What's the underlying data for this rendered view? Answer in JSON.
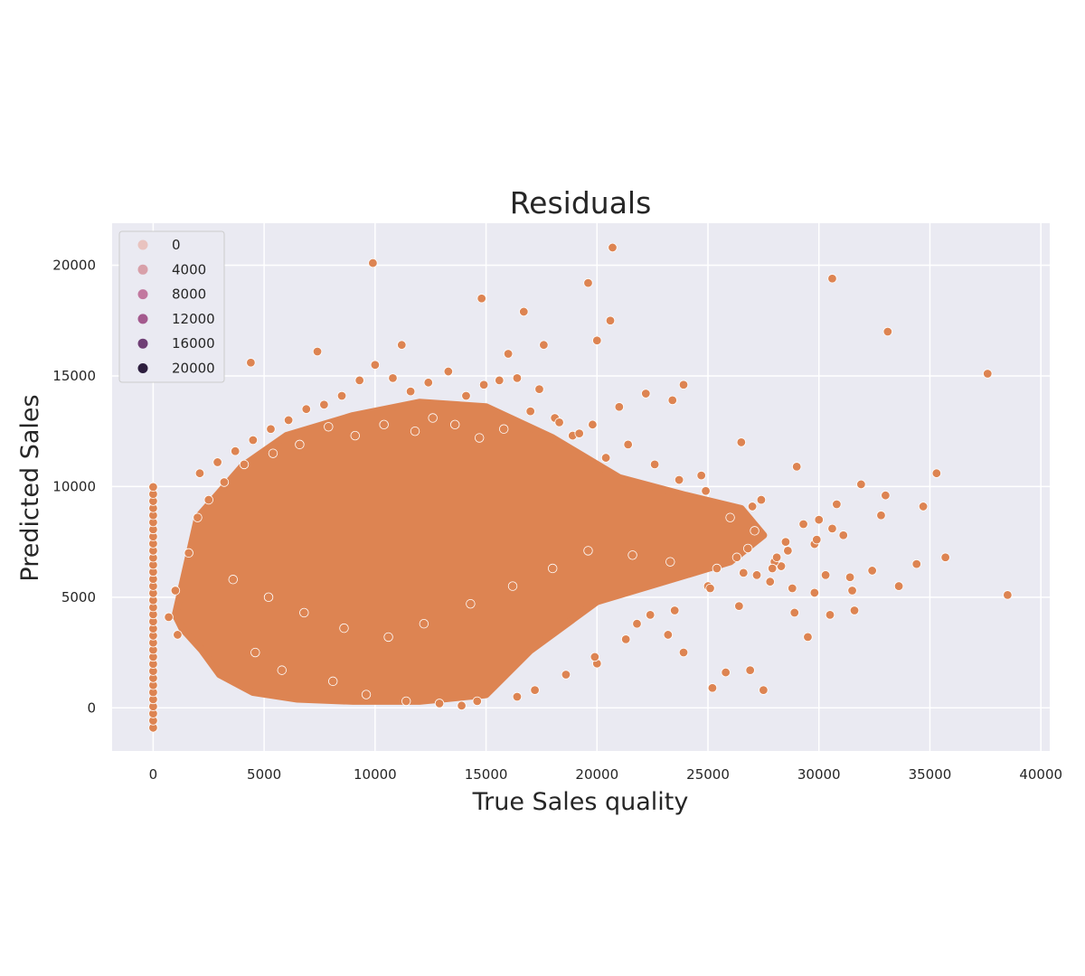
{
  "chart_data": {
    "type": "scatter",
    "title": "Residuals",
    "xlabel": "True Sales quality",
    "ylabel": "Predicted Sales",
    "xlim": [
      -1850,
      40400
    ],
    "ylim": [
      -1950,
      21900
    ],
    "xticks": [
      0,
      5000,
      10000,
      15000,
      20000,
      25000,
      30000,
      35000,
      40000
    ],
    "yticks": [
      0,
      5000,
      10000,
      15000,
      20000
    ],
    "grid": true,
    "background": "#eaeaf2",
    "grid_color": "#ffffff",
    "point_color": "#dd8452",
    "point_edge_color": "#ffffff",
    "legend": {
      "placement": "top-left",
      "entries": [
        {
          "label": "0",
          "color": "#e9c3bf"
        },
        {
          "label": "4000",
          "color": "#d8a0a9"
        },
        {
          "label": "8000",
          "color": "#c2789f"
        },
        {
          "label": "12000",
          "color": "#a45a8e"
        },
        {
          "label": "16000",
          "color": "#6f3f75"
        },
        {
          "label": "20000",
          "color": "#2d1e3e"
        }
      ]
    },
    "series": [
      {
        "x": [
          9900,
          20700,
          30600,
          14800,
          19600,
          33100,
          37600,
          20600,
          16700,
          7400,
          4400,
          16000,
          17600,
          11200,
          20000,
          38500,
          35700,
          34400,
          35300,
          34700,
          33000,
          32800,
          31900,
          31500,
          31600,
          30500,
          29500,
          28900,
          25200,
          27500,
          26900,
          25800,
          20000,
          23900,
          23200,
          21800,
          22400,
          25000,
          26400,
          26300,
          26800,
          27100,
          28500,
          28300,
          27800,
          28000,
          29800,
          30000,
          30300,
          31100,
          30800,
          29300,
          29000,
          28600,
          27400,
          26500,
          24700,
          23900,
          23400,
          22200,
          21000,
          19800,
          18900,
          18100,
          17400,
          16400,
          15600,
          14900,
          14100,
          13300,
          12400,
          11600,
          10800,
          10000,
          9300,
          8500,
          7700,
          6900,
          6100,
          5300,
          4500,
          3700,
          2900,
          2100,
          1600,
          1000,
          700,
          1100,
          4600,
          5800,
          8100,
          9600,
          11400,
          12900,
          13900,
          14600,
          16400,
          17200,
          18600,
          19900,
          21300,
          23500,
          25100,
          26600,
          27900,
          29800,
          31400,
          32400,
          33600,
          30600,
          29900,
          28100,
          27000,
          26000,
          24900,
          23700,
          22600,
          21400,
          20400,
          19200,
          18300,
          17000,
          15800,
          14700,
          13600,
          12600,
          11800,
          10400,
          9100,
          7900,
          6600,
          5400,
          4100,
          3200,
          2500,
          2000,
          3600,
          5200,
          6800,
          8600,
          10600,
          12200,
          14300,
          16200,
          18000,
          19600,
          21600,
          23300,
          25400,
          27200,
          28800
        ],
        "y": [
          20100,
          20800,
          19400,
          18500,
          19200,
          17000,
          15100,
          17500,
          17900,
          16100,
          15600,
          16000,
          16400,
          16400,
          16600,
          5100,
          6800,
          6500,
          10600,
          9100,
          9600,
          8700,
          10100,
          5300,
          4400,
          4200,
          3200,
          4300,
          900,
          800,
          1700,
          1600,
          2000,
          2500,
          3300,
          3800,
          4200,
          5500,
          4600,
          6800,
          7200,
          8000,
          7500,
          6400,
          5700,
          6600,
          7400,
          8500,
          6000,
          7800,
          9200,
          8300,
          10900,
          7100,
          9400,
          12000,
          10500,
          14600,
          13900,
          14200,
          13600,
          12800,
          12300,
          13100,
          14400,
          14900,
          14800,
          14600,
          14100,
          15200,
          14700,
          14300,
          14900,
          15500,
          14800,
          14100,
          13700,
          13500,
          13000,
          12600,
          12100,
          11600,
          11100,
          10600,
          7000,
          5300,
          4100,
          3300,
          2500,
          1700,
          1200,
          600,
          300,
          200,
          100,
          300,
          500,
          800,
          1500,
          2300,
          3100,
          4400,
          5400,
          6100,
          6300,
          5200,
          5900,
          6200,
          5500,
          8100,
          7600,
          6800,
          9100,
          8600,
          9800,
          10300,
          11000,
          11900,
          11300,
          12400,
          12900,
          13400,
          12600,
          12200,
          12800,
          13100,
          12500,
          12800,
          12300,
          12700,
          11900,
          11500,
          11000,
          10200,
          9400,
          8600,
          5800,
          5000,
          4300,
          3600,
          3200,
          3800,
          4700,
          5500,
          6300,
          7100,
          6900,
          6600,
          6300,
          6000,
          5400
        ]
      }
    ]
  }
}
